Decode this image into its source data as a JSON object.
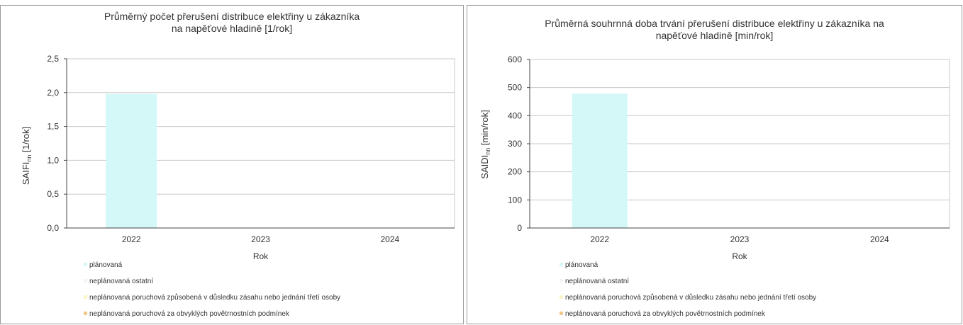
{
  "colors": {
    "planned": "#d4f7f7",
    "unplanned_other": "#f4f4f4",
    "third_party": "#fbf4c8",
    "weather": "#f2c98c",
    "grid": "#c8c8c8",
    "axis": "#444444"
  },
  "legend": [
    {
      "label": "plánovaná",
      "color_key": "planned"
    },
    {
      "label": "neplánovaná ostatní",
      "color_key": "unplanned_other"
    },
    {
      "label": "neplánovaná poruchová způsobená v důsledku zásahu nebo jednání třetí osoby",
      "color_key": "third_party"
    },
    {
      "label": "neplánovaná poruchová za obvyklých povětrnostních podmínek",
      "color_key": "weather"
    }
  ],
  "chart_data": [
    {
      "type": "bar",
      "title_line1": "Průměrný počet přerušení distribuce elektřiny u zákazníka",
      "title_line2": "na napěťové hladině [1/rok]",
      "xlabel": "Rok",
      "ylabel_main": "SAIFI",
      "ylabel_sub": "nn",
      "ylabel_unit": " [1/rok]",
      "categories": [
        "2022",
        "2023",
        "2024"
      ],
      "ylim": [
        0,
        2.5
      ],
      "yticks": [
        "0,0",
        "0,5",
        "1,0",
        "1,5",
        "2,0",
        "2,5"
      ],
      "grid": true,
      "legend_position": "bottom-left",
      "series": [
        {
          "name": "plánovaná",
          "color_key": "planned",
          "values": [
            1.98,
            0,
            0
          ]
        },
        {
          "name": "neplánovaná ostatní",
          "color_key": "unplanned_other",
          "values": [
            0,
            0,
            0
          ]
        },
        {
          "name": "neplánovaná poruchová způsobená v důsledku zásahu nebo jednání třetí osoby",
          "color_key": "third_party",
          "values": [
            0,
            0,
            0
          ]
        },
        {
          "name": "neplánovaná poruchová za obvyklých povětrnostních podmínek",
          "color_key": "weather",
          "values": [
            0,
            0,
            0
          ]
        }
      ]
    },
    {
      "type": "bar",
      "title_line1": "Průměrná souhrnná doba trvání přerušení distribuce elektřiny u zákazníka na",
      "title_line2": "napěťové hladině [min/rok]",
      "xlabel": "Rok",
      "ylabel_main": "SAIDI",
      "ylabel_sub": "nn",
      "ylabel_unit": " [min/rok]",
      "categories": [
        "2022",
        "2023",
        "2024"
      ],
      "ylim": [
        0,
        600
      ],
      "yticks": [
        "0",
        "100",
        "200",
        "300",
        "400",
        "500",
        "600"
      ],
      "grid": true,
      "legend_position": "bottom-left",
      "series": [
        {
          "name": "plánovaná",
          "color_key": "planned",
          "values": [
            478,
            0,
            0
          ]
        },
        {
          "name": "neplánovaná ostatní",
          "color_key": "unplanned_other",
          "values": [
            0,
            0,
            0
          ]
        },
        {
          "name": "neplánovaná poruchová způsobená v důsledku zásahu nebo jednání třetí osoby",
          "color_key": "third_party",
          "values": [
            0,
            0,
            0
          ]
        },
        {
          "name": "neplánovaná poruchová za obvyklých povětrnostních podmínek",
          "color_key": "weather",
          "values": [
            0,
            0,
            0
          ]
        }
      ]
    }
  ]
}
